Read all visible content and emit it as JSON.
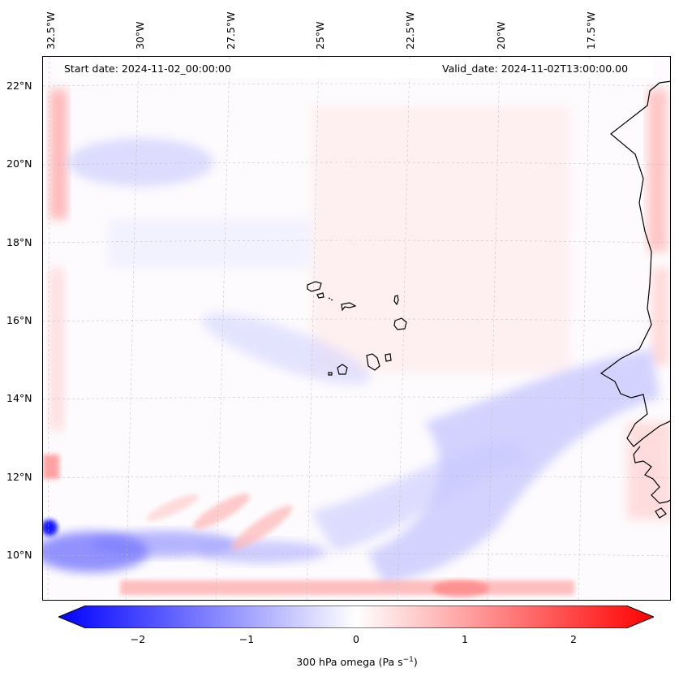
{
  "map": {
    "start_date": "Start date: 2024-11-02_00:00:00",
    "valid_date": "Valid_date: 2024-11-02T13:00:00.00",
    "lon_labels": [
      "32.5°W",
      "30°W",
      "27.5°W",
      "25°W",
      "22.5°W",
      "20°W",
      "17.5°W"
    ],
    "lat_labels": [
      "22°N",
      "20°N",
      "18°N",
      "16°N",
      "14°N",
      "12°N",
      "10°N"
    ],
    "region": "Cabo Verde / West Africa",
    "colormap": "bwr",
    "colors": {
      "negative": "#0000ff",
      "zero": "#ffffff",
      "positive": "#ff0000",
      "coast": "#000000"
    }
  },
  "colorbar": {
    "ticks": [
      "−2",
      "−1",
      "0",
      "1",
      "2"
    ],
    "label": "300 hPa omega (Pa s",
    "label_sup": "−1",
    "label_end": ")",
    "range": [
      -2.6,
      2.6
    ]
  }
}
